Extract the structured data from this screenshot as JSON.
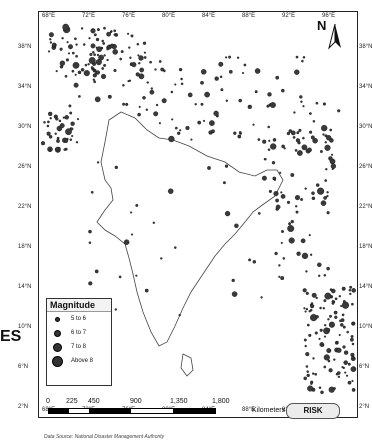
{
  "longitude_labels": [
    "68°E",
    "72°E",
    "76°E",
    "80°E",
    "84°E",
    "88°E",
    "92°E",
    "96°E"
  ],
  "latitude_labels": [
    "38°N",
    "34°N",
    "30°N",
    "26°N",
    "22°N",
    "18°N",
    "14°N",
    "10°N",
    "6°N",
    "2°N"
  ],
  "north_label": "N",
  "legend": {
    "title": "Magnitude",
    "items": [
      {
        "label": "5 to 6",
        "symbol": "circle-small"
      },
      {
        "label": "6 to 7",
        "symbol": "circle-medium"
      },
      {
        "label": "7 to 8",
        "symbol": "circle-large"
      },
      {
        "label": "Above 8",
        "symbol": "circle-largest"
      }
    ]
  },
  "scale": {
    "ticks": [
      "0",
      "225",
      "450",
      "900",
      "1,350",
      "1,800"
    ],
    "unit": "Kilometers"
  },
  "logo_text": "RISK",
  "source_text": "Data Source: National Disaster Management Authority",
  "cutoff_text": "ES",
  "colors": {
    "dots": "#3a3a3a",
    "outline": "#333333",
    "frame": "#222222"
  }
}
